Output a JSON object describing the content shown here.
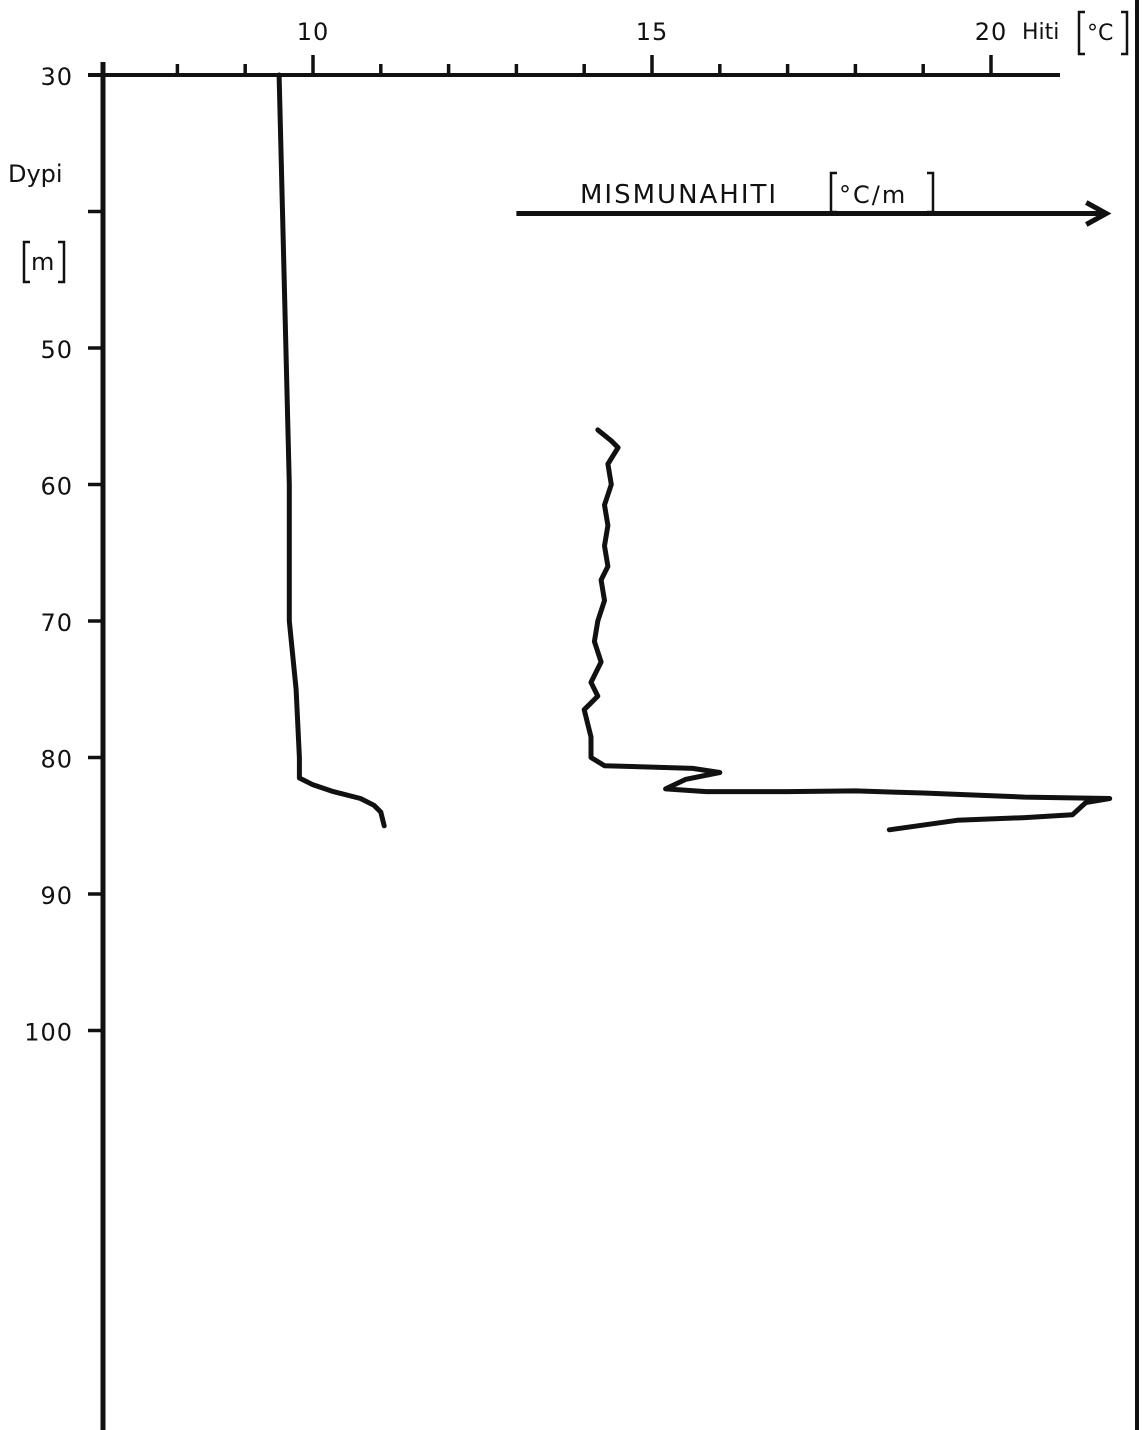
{
  "colors": {
    "ink": "#111111",
    "background": "#ffffff"
  },
  "chart_data": {
    "type": "line",
    "title": "",
    "x_axis": {
      "label": "Hiti",
      "unit": "°C",
      "position": "top",
      "range": [
        6.9,
        21.0
      ],
      "labeled_ticks": [
        10,
        15,
        20
      ],
      "minor_ticks": [
        8,
        9,
        11,
        12,
        13,
        14,
        16,
        17,
        18,
        19
      ]
    },
    "y_axis": {
      "label": "Dypi",
      "unit": "m",
      "range": [
        30,
        130
      ],
      "inverted": true,
      "tick_labels": [
        "30",
        "50",
        "60",
        "70",
        "80",
        "90",
        "100"
      ],
      "ticks": [
        30,
        40,
        50,
        60,
        70,
        80,
        90,
        100
      ]
    },
    "x_tick_labels": [
      "10",
      "15",
      "20"
    ],
    "annotation": {
      "text": "MISMUNAHITI",
      "unit": "°C/m",
      "arrow_from_x": 13.0,
      "arrow_to_x": 21.7,
      "at_depth": 40
    },
    "grid": false,
    "series": [
      {
        "id": "temperature",
        "points": [
          [
            9.5,
            30
          ],
          [
            9.55,
            40
          ],
          [
            9.6,
            50
          ],
          [
            9.65,
            60
          ],
          [
            9.65,
            70
          ],
          [
            9.75,
            75
          ],
          [
            9.8,
            80
          ],
          [
            9.8,
            81.5
          ],
          [
            10.0,
            82
          ],
          [
            10.3,
            82.5
          ],
          [
            10.7,
            83
          ],
          [
            10.9,
            83.5
          ],
          [
            11.0,
            84
          ],
          [
            11.05,
            85
          ]
        ]
      },
      {
        "id": "temperature-gradient",
        "points": [
          [
            14.2,
            56
          ],
          [
            14.4,
            56.8
          ],
          [
            14.5,
            57.3
          ],
          [
            14.35,
            58.5
          ],
          [
            14.4,
            60
          ],
          [
            14.3,
            61.5
          ],
          [
            14.35,
            63
          ],
          [
            14.3,
            64.5
          ],
          [
            14.35,
            66
          ],
          [
            14.25,
            67
          ],
          [
            14.3,
            68.5
          ],
          [
            14.2,
            70
          ],
          [
            14.15,
            71.5
          ],
          [
            14.25,
            73
          ],
          [
            14.1,
            74.5
          ],
          [
            14.2,
            75.5
          ],
          [
            14.0,
            76.5
          ],
          [
            14.05,
            77.5
          ],
          [
            14.1,
            78.5
          ],
          [
            14.1,
            80
          ],
          [
            14.3,
            80.6
          ],
          [
            15.0,
            80.7
          ],
          [
            15.6,
            80.8
          ],
          [
            16.0,
            81.1
          ],
          [
            15.5,
            81.6
          ],
          [
            15.2,
            82.3
          ],
          [
            15.8,
            82.5
          ],
          [
            17.0,
            82.5
          ],
          [
            18.0,
            82.45
          ],
          [
            19.0,
            82.6
          ],
          [
            20.5,
            82.9
          ],
          [
            21.75,
            83.0
          ],
          [
            21.4,
            83.3
          ],
          [
            21.2,
            84.2
          ],
          [
            20.5,
            84.4
          ],
          [
            19.5,
            84.6
          ],
          [
            18.5,
            85.3
          ]
        ]
      }
    ]
  }
}
